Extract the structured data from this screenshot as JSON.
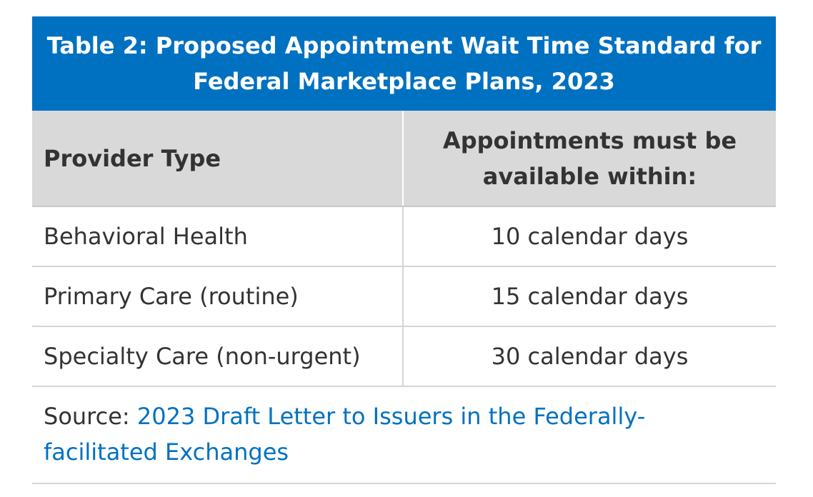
{
  "title": {
    "line1": "Table 2: Proposed Appointment Wait Time Standard for",
    "line2": "Federal Marketplace Plans, 2023"
  },
  "columns": {
    "provider_type": "Provider Type",
    "wait_time_line1": "Appointments must be",
    "wait_time_line2": "available within:"
  },
  "rows": [
    {
      "provider": "Behavioral Health",
      "wait": "10 calendar days"
    },
    {
      "provider": "Primary Care (routine)",
      "wait": "15 calendar days"
    },
    {
      "provider": "Specialty Care (non-urgent)",
      "wait": "30 calendar days"
    }
  ],
  "source": {
    "label": "Source: ",
    "link_line1": "2023 Draft Letter to Issuers in the Federally-",
    "link_line2": "facilitated Exchanges"
  },
  "colors": {
    "header_blue": "#0071c1",
    "column_header_gray": "#d9d9d9",
    "link_blue": "#0071c1"
  }
}
